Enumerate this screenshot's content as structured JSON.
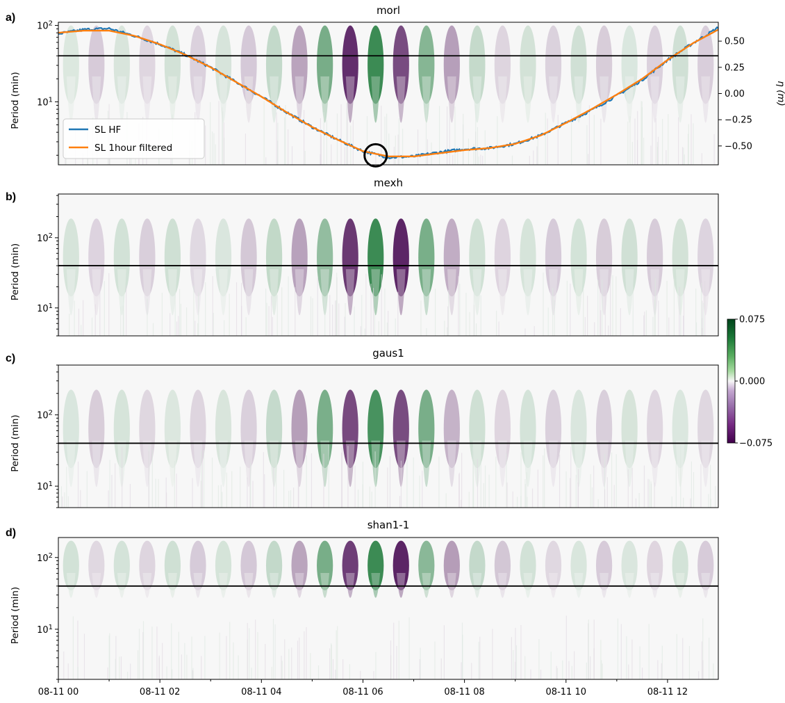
{
  "chart_data": [
    {
      "panel": "a)",
      "type": "heatmap",
      "title": "morl",
      "ylabel": "Period (min)",
      "y_scale": "log",
      "y_tick_labels": [
        "10^2",
        "10^1"
      ],
      "ylim": [
        1.5,
        110
      ],
      "reference_line_period": 40,
      "secondary_axis": {
        "label": "η (m)",
        "ticks": [
          "0.50",
          "0.25",
          "0.00",
          "−0.25",
          "−0.50"
        ],
        "tick_values": [
          0.5,
          0.25,
          0.0,
          -0.25,
          -0.5
        ],
        "ylim": [
          -0.68,
          0.68
        ]
      },
      "legend": {
        "placement": "lower-left",
        "entries": [
          "SL HF",
          "SL 1hour filtered"
        ]
      },
      "overlay": {
        "type": "line",
        "x_hours": [
          0,
          0.5,
          1,
          1.5,
          2,
          2.5,
          3,
          3.5,
          4,
          4.5,
          5,
          5.5,
          6,
          6.5,
          7,
          7.5,
          8,
          8.5,
          9,
          9.5,
          10,
          10.5,
          11,
          11.5,
          12,
          12.5,
          13
        ],
        "series": [
          {
            "name": "SL HF",
            "color": "#1f77b4",
            "noisy": true,
            "values": [
              0.57,
              0.61,
              0.62,
              0.55,
              0.47,
              0.37,
              0.25,
              0.11,
              -0.03,
              -0.18,
              -0.32,
              -0.44,
              -0.55,
              -0.61,
              -0.6,
              -0.56,
              -0.53,
              -0.52,
              -0.48,
              -0.4,
              -0.28,
              -0.16,
              -0.02,
              0.13,
              0.32,
              0.48,
              0.63
            ]
          },
          {
            "name": "SL 1hour filtered",
            "color": "#ff7f0e",
            "noisy": false,
            "values": [
              0.58,
              0.6,
              0.6,
              0.55,
              0.47,
              0.37,
              0.25,
              0.11,
              -0.03,
              -0.18,
              -0.32,
              -0.44,
              -0.55,
              -0.6,
              -0.6,
              -0.57,
              -0.54,
              -0.52,
              -0.48,
              -0.4,
              -0.28,
              -0.15,
              -0.01,
              0.14,
              0.32,
              0.48,
              0.61
            ]
          }
        ],
        "marker": {
          "shape": "circle",
          "x_hour": 6.25,
          "value": -0.59
        }
      }
    },
    {
      "panel": "b)",
      "type": "heatmap",
      "title": "mexh",
      "ylabel": "Period (min)",
      "y_scale": "log",
      "y_tick_labels": [
        "10^2",
        "10^1"
      ],
      "ylim": [
        4,
        420
      ],
      "reference_line_period": 40
    },
    {
      "panel": "c)",
      "type": "heatmap",
      "title": "gaus1",
      "ylabel": "Period (min)",
      "y_scale": "log",
      "y_tick_labels": [
        "10^2",
        "10^1"
      ],
      "ylim": [
        5,
        500
      ],
      "reference_line_period": 40
    },
    {
      "panel": "d)",
      "type": "heatmap",
      "title": "shan1-1",
      "ylabel": "Period (min)",
      "y_scale": "log",
      "y_tick_labels": [
        "10^2",
        "10^1"
      ],
      "ylim": [
        2,
        190
      ],
      "reference_line_period": 40
    }
  ],
  "x_axis": {
    "xlim_hours": [
      0,
      13
    ],
    "tick_hours": [
      0,
      2,
      4,
      6,
      8,
      10,
      12
    ],
    "tick_labels": [
      "08-11 00",
      "08-11 02",
      "08-11 04",
      "08-11 06",
      "08-11 08",
      "08-11 10",
      "08-11 12"
    ]
  },
  "colorbar": {
    "colormap": "PRGn",
    "range": [
      -0.075,
      0.075
    ],
    "tick_values": [
      0.075,
      0.0,
      -0.075
    ],
    "tick_labels": [
      "0.075",
      "0.000",
      "−0.075"
    ],
    "colors": {
      "high": "#1b7837",
      "mid": "#f7f7f7",
      "low": "#40004b"
    }
  }
}
